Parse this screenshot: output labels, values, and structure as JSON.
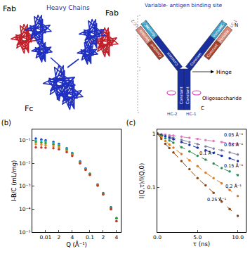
{
  "figure": {
    "structure": {
      "fab_left": "Fab",
      "heavy_chains": "Heavy Chains",
      "fab_right": "Fab",
      "fc": "Fc"
    },
    "schematic": {
      "binding_site": "Variable- antigen binding site",
      "left_arm": {
        "light": "LC-2",
        "heavy": "HC-2",
        "variable": "Variable",
        "constant": "Constant"
      },
      "right_arm": {
        "heavy": "HC-1",
        "light": "LC-1",
        "variable": "Variable",
        "constant": "Constant"
      },
      "n_terminus": "N",
      "hinge": "Hinge",
      "oligosaccharide": "Oligosaccharide",
      "stem": {
        "label": "Constant",
        "left": "HC-2",
        "right": "HC-1"
      },
      "c_terminus": "C"
    }
  },
  "chart_data": [
    {
      "type": "scatter",
      "title": "(b)",
      "x_label": "Q (Å⁻¹)",
      "y_label": "I-B/C (mL/mg)",
      "log": true,
      "marker": "circle",
      "xlim": [
        0.005,
        0.5
      ],
      "xticks": [
        0.01,
        {
          "value": 0.02,
          "label": "2"
        },
        {
          "value": 0.04,
          "label": "4"
        },
        0.1,
        {
          "value": 0.2,
          "label": "2"
        },
        {
          "value": 0.4,
          "label": "4"
        }
      ],
      "ylim": [
        1e-05,
        0.3
      ],
      "yticks": [
        {
          "value": 1e-05,
          "label": "10⁻⁵"
        },
        {
          "value": 0.0001,
          "label": "10⁻⁴"
        },
        {
          "value": 0.001,
          "label": "10⁻³"
        },
        {
          "value": 0.01,
          "label": "10⁻²"
        },
        {
          "value": 0.1,
          "label": "10⁻¹"
        }
      ],
      "x": [
        0.006,
        0.008,
        0.01,
        0.015,
        0.02,
        0.03,
        0.04,
        0.06,
        0.08,
        0.1,
        0.15,
        0.2,
        0.3,
        0.4
      ],
      "series": [
        {
          "color": "#1f3fd0",
          "values": [
            0.12,
            0.11,
            0.1,
            0.085,
            0.07,
            0.045,
            0.028,
            0.012,
            0.006,
            0.0035,
            0.0012,
            0.0005,
            0.00012,
            4e-05
          ]
        },
        {
          "color": "#22b8d8",
          "values": [
            0.1,
            0.095,
            0.088,
            0.076,
            0.064,
            0.042,
            0.027,
            0.0115,
            0.0058,
            0.0034,
            0.00115,
            0.00048,
            0.00011,
            4e-05
          ]
        },
        {
          "color": "#2ca02c",
          "values": [
            0.085,
            0.08,
            0.076,
            0.067,
            0.058,
            0.039,
            0.025,
            0.011,
            0.0056,
            0.0033,
            0.0011,
            0.00046,
            0.00011,
            4e-05
          ]
        },
        {
          "color": "#e08a1e",
          "values": [
            0.068,
            0.065,
            0.062,
            0.056,
            0.05,
            0.035,
            0.023,
            0.0105,
            0.0054,
            0.0032,
            0.0011,
            0.00045,
            0.0001,
            3e-05
          ]
        },
        {
          "color": "#c0392b",
          "values": [
            0.05,
            0.049,
            0.048,
            0.045,
            0.041,
            0.031,
            0.021,
            0.01,
            0.0052,
            0.0031,
            0.00105,
            0.00044,
            0.0001,
            3e-05
          ]
        }
      ]
    },
    {
      "type": "line",
      "title": "(c)",
      "x_label": "τ (ns)",
      "y_label": "I(Q,τ)/I(Q,0)",
      "log": "y",
      "marker": "circle",
      "line_style": "dash",
      "xlim": [
        0,
        11
      ],
      "xticks": [
        {
          "value": 0,
          "label": "0.0"
        },
        {
          "value": 5,
          "label": "5.0"
        },
        {
          "value": 10,
          "label": "10.0"
        }
      ],
      "ylim": [
        0.015,
        1.2
      ],
      "yticks": [
        0.1,
        1
      ],
      "x": [
        0,
        0.5,
        1,
        1.5,
        2,
        3,
        4,
        5,
        6,
        7,
        8,
        9,
        10
      ],
      "series": [
        {
          "color": "#e377c2",
          "values": [
            1,
            0.98,
            0.96,
            0.94,
            0.92,
            0.88,
            0.84,
            0.8,
            0.76,
            0.73,
            0.7,
            0.67,
            0.64
          ]
        },
        {
          "color": "#7f7f9f",
          "values": [
            1,
            0.96,
            0.92,
            0.88,
            0.84,
            0.77,
            0.7,
            0.64,
            0.58,
            0.53,
            0.49,
            0.45,
            0.41
          ]
        },
        {
          "color": "#1a2f9f",
          "values": [
            1,
            0.94,
            0.89,
            0.84,
            0.79,
            0.7,
            0.62,
            0.55,
            0.49,
            0.44,
            0.39,
            0.35,
            0.31
          ]
        },
        {
          "color": "#2e8b57",
          "values": [
            1,
            0.9,
            0.82,
            0.75,
            0.68,
            0.56,
            0.47,
            0.39,
            0.33,
            0.28,
            0.23,
            0.2,
            0.17
          ]
        },
        {
          "color": "#e07b1a",
          "values": [
            1,
            0.85,
            0.73,
            0.63,
            0.55,
            0.42,
            0.32,
            0.25,
            0.19,
            0.15,
            0.12,
            0.09,
            0.07
          ]
        },
        {
          "color": "#8b4513",
          "values": [
            1,
            0.8,
            0.65,
            0.54,
            0.45,
            0.31,
            0.22,
            0.15,
            0.11,
            0.08,
            0.055,
            0.04,
            0.03
          ]
        }
      ],
      "annotations": [
        {
          "text": "0.05 Å⁻¹",
          "x": 9.5,
          "y": 0.8
        },
        {
          "text": "0.08 Å⁻¹",
          "x": 9.5,
          "y": 0.52
        },
        {
          "text": "0.1 Å⁻¹",
          "x": 6.2,
          "y": 0.36
        },
        {
          "text": "0.15 Å⁻¹",
          "x": 9.5,
          "y": 0.21
        },
        {
          "text": "0.2 Å⁻¹",
          "x": 9.5,
          "y": 0.088
        },
        {
          "text": "0.25 Å⁻¹",
          "x": 7.4,
          "y": 0.05
        }
      ]
    }
  ]
}
